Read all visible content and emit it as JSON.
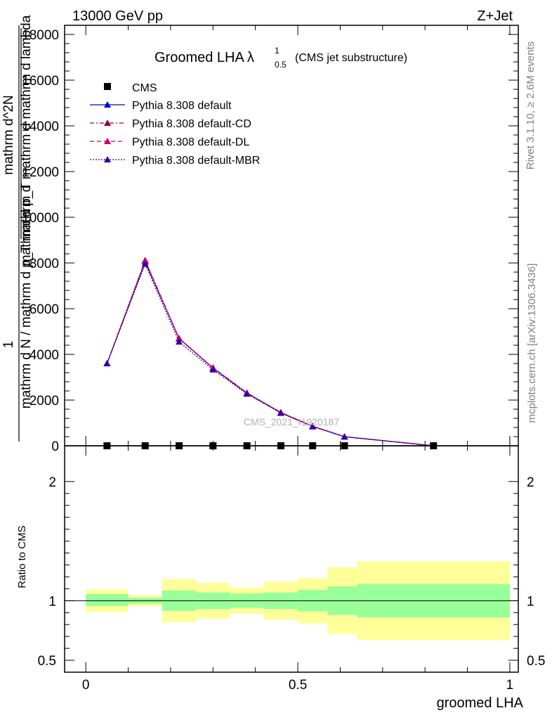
{
  "header": {
    "left": "13000 GeV pp",
    "right": "Z+Jet"
  },
  "side_labels": {
    "rivet": "Rivet 3.1.10, ≥ 2.6M events",
    "mcplots": "mcplots.cern.ch [arXiv:1306.3436]"
  },
  "watermark": "CMS_2021_I1920187",
  "chart_data": [
    {
      "type": "line",
      "title_main": "Groomed LHA",
      "title_lambda": "λ",
      "title_sup": "1",
      "title_sub": "0.5",
      "title_note": "(CMS jet substructure)",
      "ylabel_one": "1",
      "ylabel_den": "mathrm d N / mathrm d p_T mathrm d",
      "ylabel_num": "mathrm d^2N",
      "ylabel_numden": "mathrm d p_T mathrm d mathrm d lambda",
      "ylim": [
        0,
        18400
      ],
      "yticks": [
        2000,
        4000,
        6000,
        8000,
        10000,
        12000,
        14000,
        16000,
        18000
      ],
      "ytick_labels": [
        "2000",
        "4000",
        "6000",
        "8000",
        "10000",
        "12000",
        "14000",
        "16000",
        "18000"
      ],
      "ytick_zero": "0",
      "xlim": [
        -0.05,
        1.02
      ],
      "cms": {
        "name": "CMS",
        "x": [
          0.05,
          0.14,
          0.22,
          0.3,
          0.38,
          0.46,
          0.535,
          0.61,
          0.82
        ],
        "y": [
          0,
          0,
          0,
          0,
          0,
          0,
          0,
          0,
          0
        ]
      },
      "series": [
        {
          "name": "Pythia 8.308 default",
          "color": "#0000cc",
          "dash": "solid",
          "x": [
            0.05,
            0.14,
            0.22,
            0.3,
            0.38,
            0.46,
            0.535,
            0.61,
            0.82
          ],
          "y": [
            3600,
            8050,
            4700,
            3400,
            2300,
            1450,
            850,
            400,
            0
          ]
        },
        {
          "name": "Pythia 8.308 default-CD",
          "color": "#990033",
          "dash": "dashdot",
          "x": [
            0.05,
            0.14,
            0.22,
            0.3,
            0.38,
            0.46,
            0.535,
            0.61,
            0.82
          ],
          "y": [
            3600,
            8120,
            4700,
            3420,
            2320,
            1460,
            860,
            400,
            0
          ]
        },
        {
          "name": "Pythia 8.308 default-DL",
          "color": "#cc0066",
          "dash": "dash",
          "x": [
            0.05,
            0.14,
            0.22,
            0.3,
            0.38,
            0.46,
            0.535,
            0.61,
            0.82
          ],
          "y": [
            3600,
            8100,
            4680,
            3410,
            2310,
            1450,
            850,
            400,
            0
          ]
        },
        {
          "name": "Pythia 8.308 default-MBR",
          "color": "#3300aa",
          "dash": "dot",
          "x": [
            0.05,
            0.14,
            0.22,
            0.3,
            0.38,
            0.46,
            0.535,
            0.61,
            0.82
          ],
          "y": [
            3600,
            7950,
            4550,
            3330,
            2270,
            1430,
            840,
            390,
            0
          ]
        }
      ]
    },
    {
      "type": "area",
      "ylabel": "Ratio to CMS",
      "xlabel": "groomed LHA",
      "ylim": [
        0.4,
        2.3
      ],
      "xlim": [
        -0.05,
        1.02
      ],
      "yticks": [
        0.5,
        1,
        2
      ],
      "ytick_labels": [
        "0.5",
        "1",
        "2"
      ],
      "xticks": [
        0,
        0.5,
        1
      ],
      "xtick_labels": [
        "0",
        "0.5",
        "1"
      ],
      "reference": 1,
      "bins": [
        {
          "lo": 0.0,
          "hi": 0.1,
          "green": [
            0.955,
            1.055
          ],
          "yellow": [
            0.905,
            1.095
          ]
        },
        {
          "lo": 0.1,
          "hi": 0.18,
          "green": [
            0.975,
            1.025
          ],
          "yellow": [
            0.955,
            1.045
          ]
        },
        {
          "lo": 0.18,
          "hi": 0.26,
          "green": [
            0.915,
            1.085
          ],
          "yellow": [
            0.82,
            1.18
          ]
        },
        {
          "lo": 0.26,
          "hi": 0.34,
          "green": [
            0.93,
            1.07
          ],
          "yellow": [
            0.85,
            1.15
          ]
        },
        {
          "lo": 0.34,
          "hi": 0.42,
          "green": [
            0.94,
            1.06
          ],
          "yellow": [
            0.89,
            1.11
          ]
        },
        {
          "lo": 0.42,
          "hi": 0.5,
          "green": [
            0.93,
            1.07
          ],
          "yellow": [
            0.84,
            1.16
          ]
        },
        {
          "lo": 0.5,
          "hi": 0.57,
          "green": [
            0.91,
            1.09
          ],
          "yellow": [
            0.81,
            1.19
          ]
        },
        {
          "lo": 0.57,
          "hi": 0.64,
          "green": [
            0.88,
            1.12
          ],
          "yellow": [
            0.72,
            1.28
          ]
        },
        {
          "lo": 0.64,
          "hi": 1.0,
          "green": [
            0.86,
            1.14
          ],
          "yellow": [
            0.67,
            1.33
          ]
        }
      ]
    }
  ]
}
